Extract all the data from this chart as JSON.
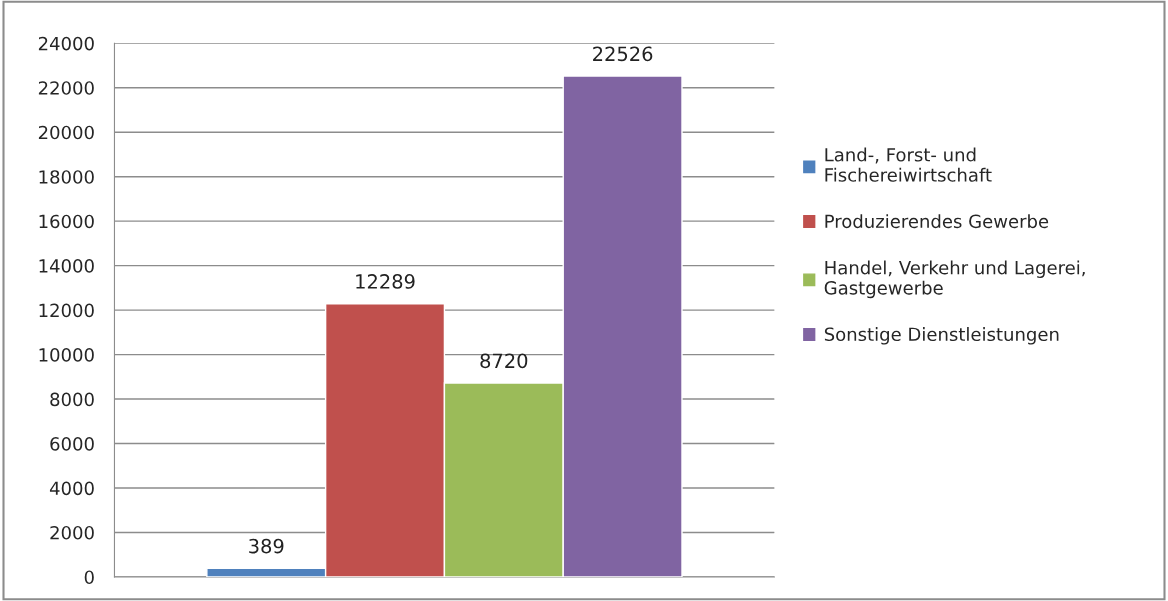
{
  "chart_data": {
    "type": "bar",
    "categories": [
      null
    ],
    "series": [
      {
        "name": "Land-, Forst- und\nFischereiwirtschaft",
        "color": "#4f81bd",
        "values": [
          389
        ]
      },
      {
        "name": "Produzierendes Gewerbe",
        "color": "#c0504d",
        "values": [
          12289
        ]
      },
      {
        "name": "Handel, Verkehr und Lagerei,\nGastgewerbe",
        "color": "#9bbb59",
        "values": [
          8720
        ]
      },
      {
        "name": "Sonstige Dienstleistungen",
        "color": "#8064a2",
        "values": [
          22526
        ]
      }
    ],
    "ylim": [
      0,
      24000
    ],
    "yticks": [
      0,
      2000,
      4000,
      6000,
      8000,
      10000,
      12000,
      14000,
      16000,
      18000,
      20000,
      22000,
      24000
    ],
    "grid": "y",
    "legend": "right",
    "data_labels": true
  }
}
